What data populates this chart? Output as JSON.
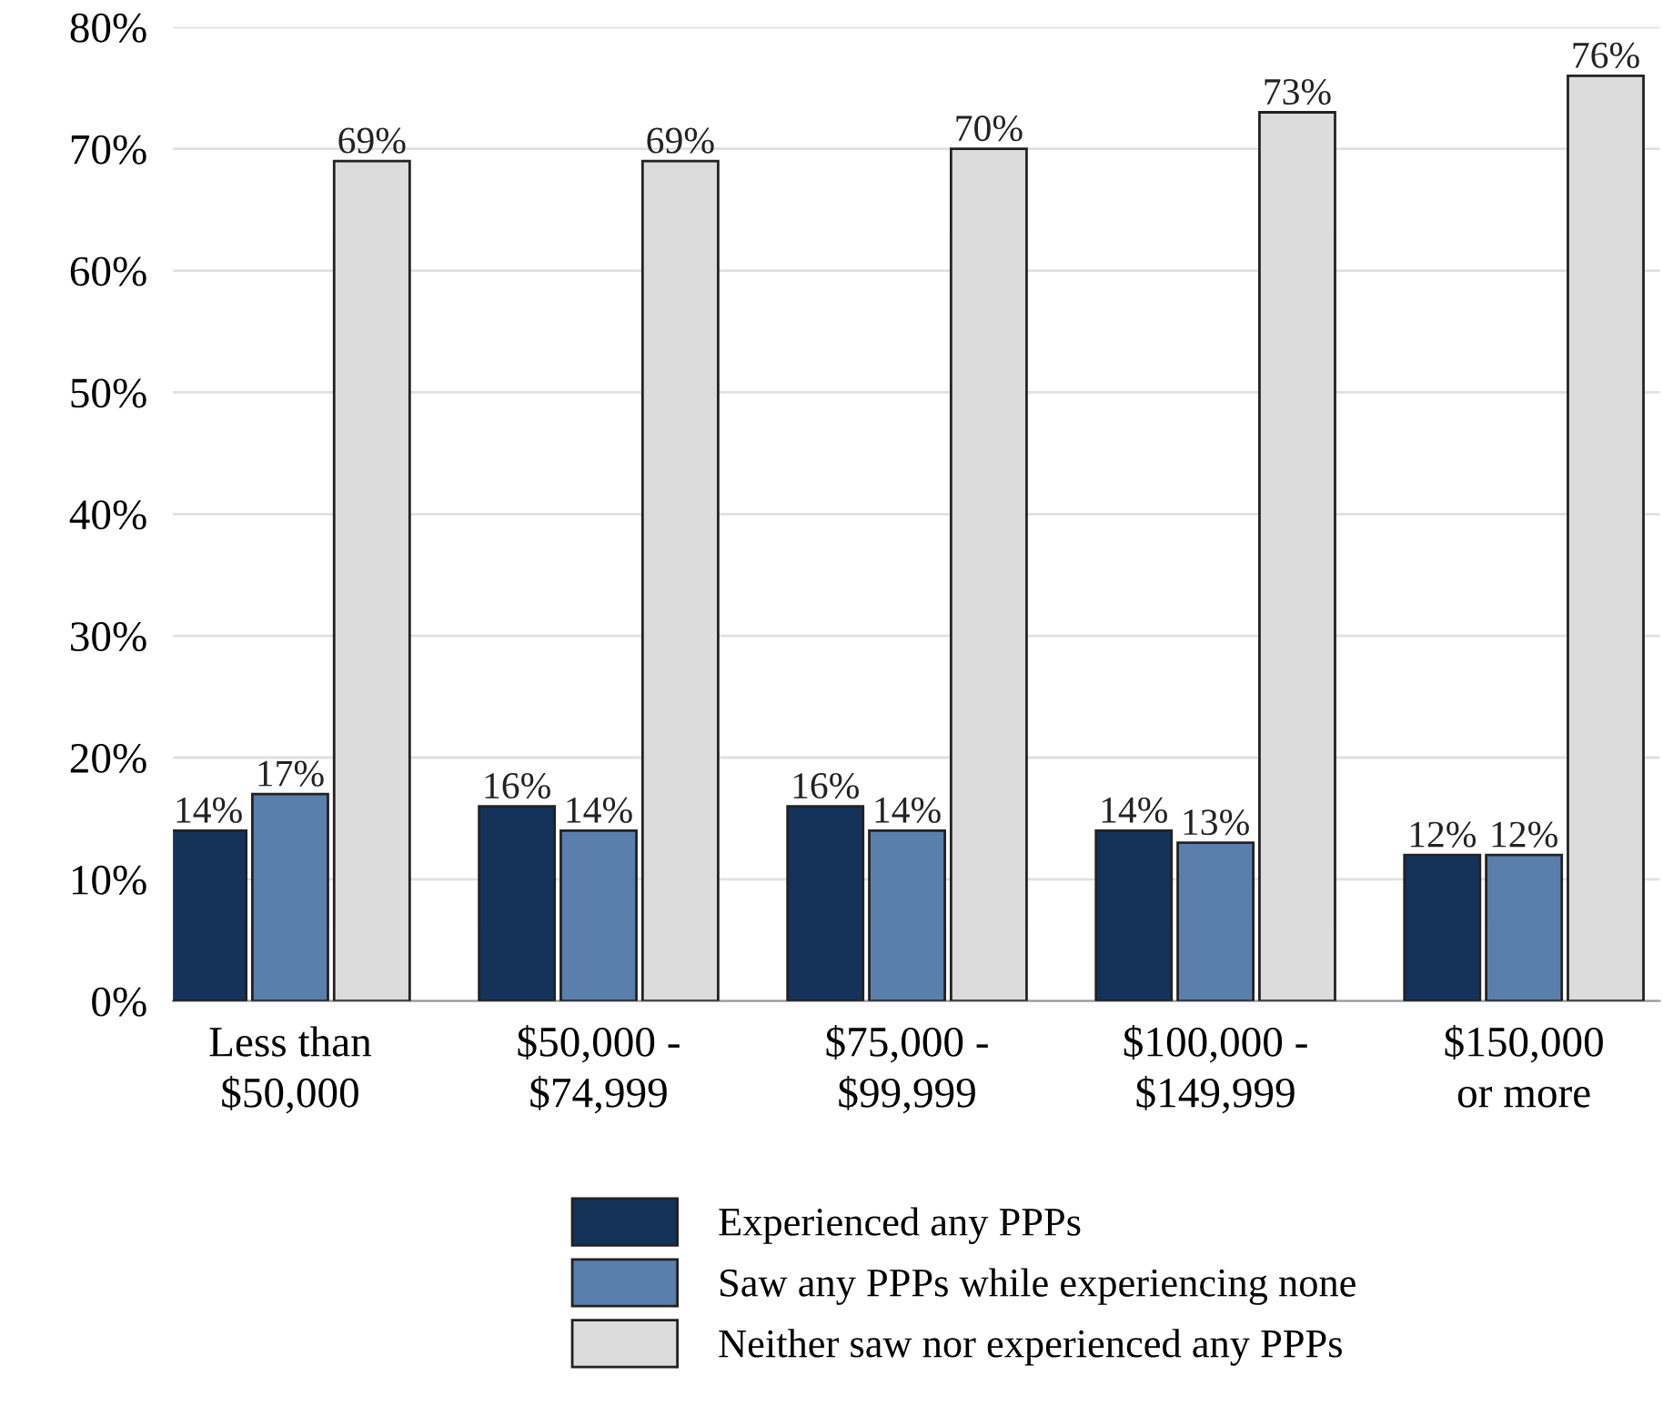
{
  "chart_data": {
    "type": "bar",
    "categories": [
      "Less than\n$50,000",
      "$50,000 -\n$74,999",
      "$75,000 -\n$99,999",
      "$100,000 -\n$149,999",
      "$150,000\nor more"
    ],
    "series": [
      {
        "name": "Experienced any PPPs",
        "color": "#14325a",
        "values": [
          14,
          16,
          16,
          14,
          12
        ]
      },
      {
        "name": "Saw any PPPs while experiencing none",
        "color": "#5b7fad",
        "values": [
          17,
          14,
          14,
          13,
          12
        ]
      },
      {
        "name": "Neither saw nor experienced any PPPs",
        "color": "#dcdcdc",
        "values": [
          69,
          69,
          70,
          73,
          76
        ]
      }
    ],
    "ylim": [
      0,
      80
    ],
    "yticks": [
      {
        "value": 0,
        "label": "0%"
      },
      {
        "value": 10,
        "label": "10%"
      },
      {
        "value": 20,
        "label": "20%"
      },
      {
        "value": 30,
        "label": "30%"
      },
      {
        "value": 40,
        "label": "40%"
      },
      {
        "value": 50,
        "label": "50%"
      },
      {
        "value": 60,
        "label": "60%"
      },
      {
        "value": 70,
        "label": "70%"
      },
      {
        "value": 80,
        "label": "80%"
      }
    ],
    "value_labels": [
      [
        "14%",
        "16%",
        "16%",
        "14%",
        "12%"
      ],
      [
        "17%",
        "14%",
        "14%",
        "13%",
        "12%"
      ],
      [
        "69%",
        "69%",
        "70%",
        "73%",
        "76%"
      ]
    ],
    "grid": "y",
    "legend": "bottom"
  }
}
